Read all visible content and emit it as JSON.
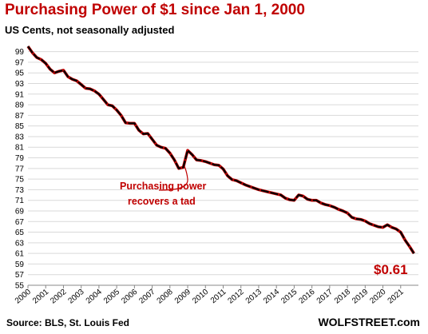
{
  "chart_data": {
    "type": "line",
    "title": "Purchasing  Power of $1 since Jan 1, 2000",
    "subtitle": "US Cents, not seasonally adjusted",
    "xlabel": "",
    "ylabel": "",
    "ylim": [
      55,
      100
    ],
    "y_ticks": [
      "99",
      "97",
      "95",
      "93",
      "91",
      "89",
      "87",
      "85",
      "83",
      "81",
      "79",
      "77",
      "75",
      "73",
      "71",
      "69",
      "67",
      "65",
      "63",
      "61",
      "59",
      "57",
      "55"
    ],
    "x_ticks": [
      "2000",
      "2001",
      "2002",
      "2003",
      "2004",
      "2005",
      "2006",
      "2007",
      "2008",
      "2009",
      "2010",
      "2011",
      "2012",
      "2013",
      "2014",
      "2015",
      "2016",
      "2017",
      "2018",
      "2019",
      "2020",
      "2021"
    ],
    "grid": true,
    "legend": "none",
    "line_color": "#000000",
    "highlight_color": "#c00000",
    "series": [
      {
        "x": [
          2000.0,
          2000.25,
          2000.5,
          2000.75,
          2001.0,
          2001.25,
          2001.5,
          2001.75,
          2002.0,
          2002.25,
          2002.5,
          2002.75,
          2003.0,
          2003.25,
          2003.5,
          2003.75,
          2004.0,
          2004.25,
          2004.5,
          2004.75,
          2005.0,
          2005.25,
          2005.5,
          2005.75,
          2006.0,
          2006.25,
          2006.5,
          2006.75,
          2007.0,
          2007.25,
          2007.5,
          2007.75,
          2008.0,
          2008.25,
          2008.5,
          2008.75,
          2009.0,
          2009.25,
          2009.5,
          2009.75,
          2010.0,
          2010.25,
          2010.5,
          2010.75,
          2011.0,
          2011.25,
          2011.5,
          2011.75,
          2012.0,
          2012.25,
          2012.5,
          2012.75,
          2013.0,
          2013.25,
          2013.5,
          2013.75,
          2014.0,
          2014.25,
          2014.5,
          2014.75,
          2015.0,
          2015.25,
          2015.5,
          2015.75,
          2016.0,
          2016.25,
          2016.5,
          2016.75,
          2017.0,
          2017.25,
          2017.5,
          2017.75,
          2018.0,
          2018.25,
          2018.5,
          2018.75,
          2019.0,
          2019.25,
          2019.5,
          2019.75,
          2020.0,
          2020.25,
          2020.5,
          2020.75,
          2021.0,
          2021.25,
          2021.5,
          2021.75
        ],
        "values": [
          100.0,
          98.8,
          97.9,
          97.5,
          96.8,
          95.7,
          95.0,
          95.3,
          95.5,
          94.3,
          93.8,
          93.5,
          92.8,
          92.1,
          92.0,
          91.6,
          91.0,
          90.0,
          89.0,
          88.8,
          88.0,
          87.0,
          85.6,
          85.5,
          85.5,
          84.2,
          83.5,
          83.6,
          82.5,
          81.4,
          81.0,
          80.8,
          79.9,
          78.6,
          77.0,
          77.2,
          80.4,
          79.6,
          78.6,
          78.5,
          78.3,
          78.0,
          77.7,
          77.6,
          76.9,
          75.6,
          74.9,
          74.7,
          74.3,
          73.9,
          73.6,
          73.3,
          73.0,
          72.8,
          72.6,
          72.4,
          72.2,
          72.0,
          71.4,
          71.1,
          71.0,
          72.0,
          71.8,
          71.2,
          71.0,
          71.0,
          70.5,
          70.2,
          70.0,
          69.7,
          69.3,
          69.0,
          68.6,
          67.8,
          67.5,
          67.4,
          67.1,
          66.6,
          66.3,
          66.0,
          65.9,
          66.4,
          65.9,
          65.6,
          65.0,
          63.5,
          62.3,
          61.0
        ]
      }
    ],
    "annotations": {
      "recession_note_line1": "Purchasing power",
      "recession_note_line2": "recovers a tad",
      "end_value": "$0.61"
    }
  },
  "footer": {
    "source": "Source: BLS, St. Louis Fed",
    "brand": "WOLFSTREET.com"
  }
}
